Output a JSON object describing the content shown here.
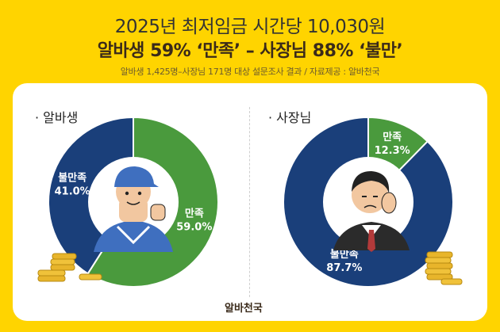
{
  "header": {
    "title": "2025년 최저임금 시간당 10,030원",
    "headline": "알바생 59% ‘만족’ – 사장님 88% ‘불만’",
    "source_note": "알바생 1,425명–사장님 171명 대상 설문조사 결과 / 자료제공 : 알바천국"
  },
  "chart_data": [
    {
      "type": "pie",
      "title": "· 알바생",
      "slices": [
        {
          "label": "만족",
          "value": 59.0,
          "value_label": "59.0%",
          "color": "#4A9A3D"
        },
        {
          "label": "불만족",
          "value": 41.0,
          "value_label": "41.0%",
          "color": "#1A3F7A"
        }
      ]
    },
    {
      "type": "pie",
      "title": "· 사장님",
      "slices": [
        {
          "label": "만족",
          "value": 12.3,
          "value_label": "12.3%",
          "color": "#4A9A3D"
        },
        {
          "label": "불만족",
          "value": 87.7,
          "value_label": "87.7%",
          "color": "#1A3F7A"
        }
      ]
    }
  ],
  "footer": {
    "logo": "알바천국"
  }
}
